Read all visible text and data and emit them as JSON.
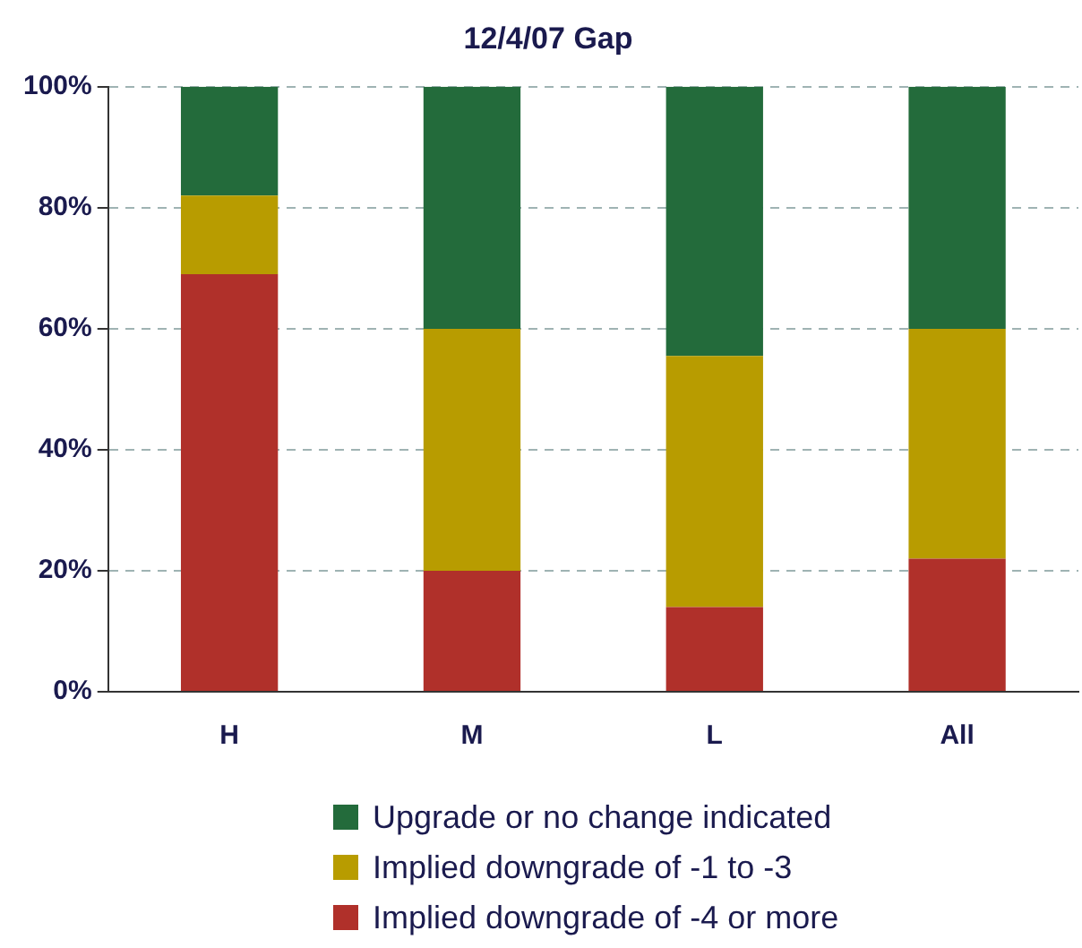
{
  "chart_data": {
    "type": "bar",
    "title": "12/4/07 Gap",
    "stacked": true,
    "categories": [
      "H",
      "M",
      "L",
      "All"
    ],
    "series": [
      {
        "name": "Implied downgrade of -4 or more",
        "color": "#b0302a",
        "values": [
          69,
          20,
          14,
          22
        ]
      },
      {
        "name": "Implied downgrade of -1 to -3",
        "color": "#b89c00",
        "values": [
          13,
          40,
          41.5,
          38
        ]
      },
      {
        "name": "Upgrade or no change indicated",
        "color": "#236b3b",
        "values": [
          18,
          40,
          44.5,
          40
        ]
      }
    ],
    "ylim": [
      0,
      100
    ],
    "yticks": [
      {
        "value": 0,
        "label": "0%"
      },
      {
        "value": 20,
        "label": "20%"
      },
      {
        "value": 40,
        "label": "40%"
      },
      {
        "value": 60,
        "label": "60%"
      },
      {
        "value": 80,
        "label": "80%"
      },
      {
        "value": 100,
        "label": "100%"
      }
    ],
    "grid": "y",
    "legend": "bottom"
  }
}
